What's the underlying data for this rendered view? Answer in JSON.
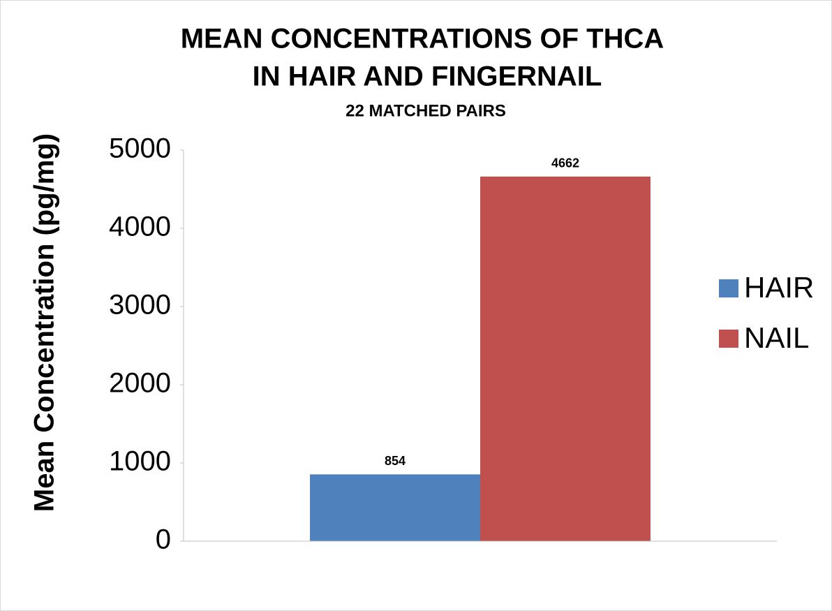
{
  "chart_data": {
    "type": "bar",
    "title": [
      "MEAN CONCENTRATIONS OF THCA",
      "IN HAIR AND FINGERNAIL"
    ],
    "subtitle": "22 MATCHED PAIRS",
    "y_label": "Mean Concentration (pg/mg)",
    "categories": [
      null
    ],
    "series": [
      {
        "name": "HAIR",
        "color": "#4f81bd",
        "values": [
          854
        ]
      },
      {
        "name": "NAIL",
        "color": "#c0504d",
        "values": [
          4662
        ]
      }
    ],
    "ylim": [
      0,
      5000
    ],
    "yticks": [
      0,
      1000,
      2000,
      3000,
      4000,
      5000
    ],
    "grid": false,
    "legend": "right"
  }
}
